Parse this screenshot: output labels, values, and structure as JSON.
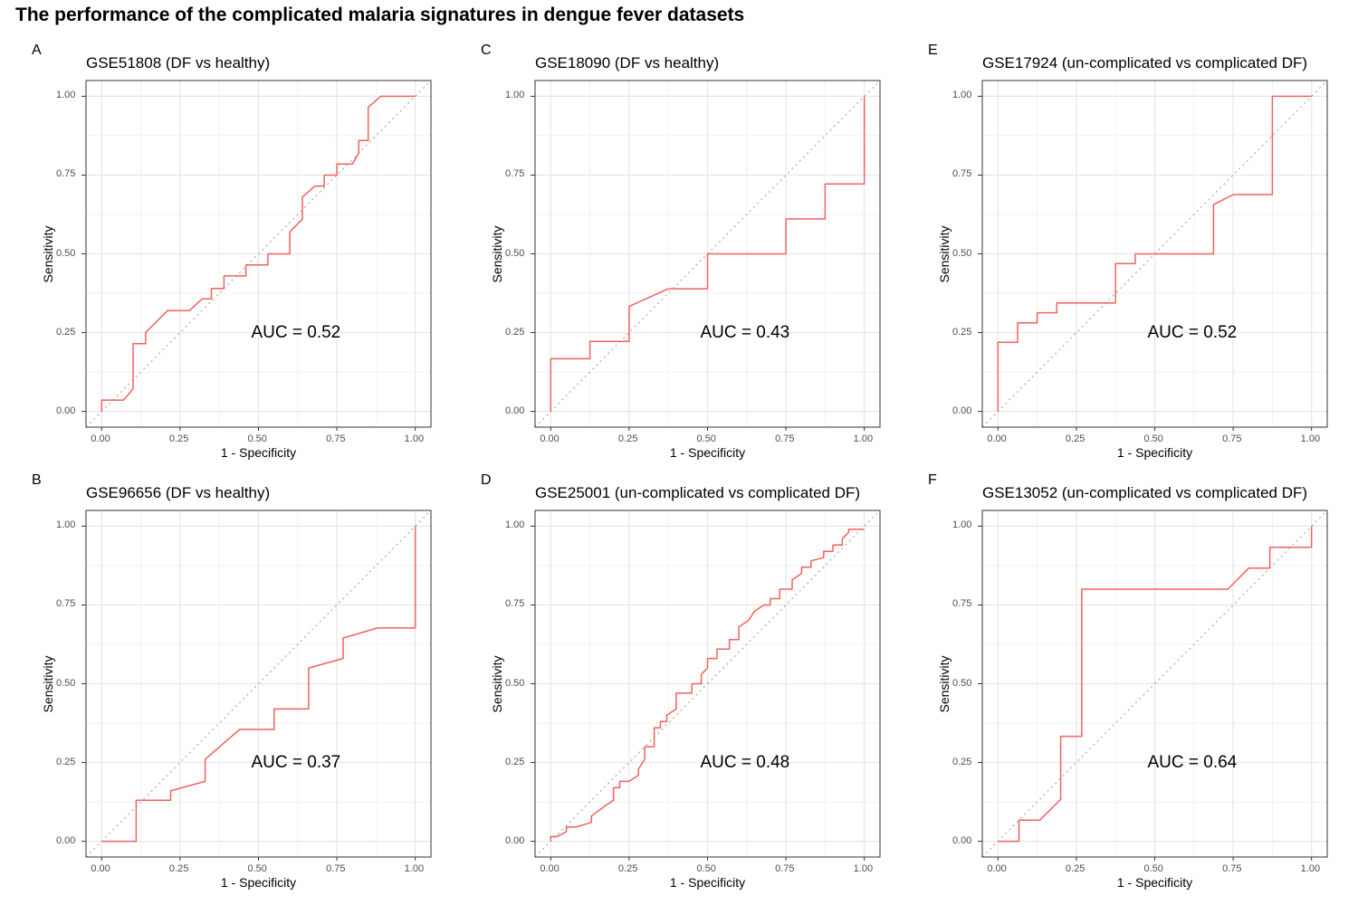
{
  "figure": {
    "title": "The performance of the complicated malaria signatures in dengue fever datasets"
  },
  "colors": {
    "roc_line": "#f0625d",
    "diagonal": "#a9a9a9",
    "grid_major": "#e6e6e6",
    "grid_minor": "#f2f2f2",
    "panel_border": "#333333"
  },
  "chart_data": [
    {
      "type": "line",
      "panel": "A",
      "title": "GSE51808 (DF vs healthy)",
      "xlabel": "1 - Specificity",
      "ylabel": "Sensitivity",
      "xlim": [
        0,
        1
      ],
      "ylim": [
        0,
        1
      ],
      "xticks": [
        "0.00",
        "0.25",
        "0.50",
        "0.75",
        "1.00"
      ],
      "yticks": [
        "0.00",
        "0.25",
        "0.50",
        "0.75",
        "1.00"
      ],
      "auc_label": "AUC = 0.52",
      "x": [
        0,
        0,
        0.07,
        0.1,
        0.1,
        0.14,
        0.14,
        0.21,
        0.28,
        0.32,
        0.35,
        0.35,
        0.39,
        0.39,
        0.46,
        0.46,
        0.53,
        0.53,
        0.6,
        0.6,
        0.64,
        0.64,
        0.68,
        0.71,
        0.71,
        0.75,
        0.75,
        0.8,
        0.82,
        0.82,
        0.85,
        0.85,
        0.89,
        0.89,
        1
      ],
      "y": [
        0,
        0.036,
        0.036,
        0.072,
        0.215,
        0.215,
        0.25,
        0.32,
        0.32,
        0.357,
        0.357,
        0.39,
        0.39,
        0.43,
        0.43,
        0.465,
        0.465,
        0.5,
        0.5,
        0.57,
        0.61,
        0.68,
        0.715,
        0.715,
        0.75,
        0.75,
        0.785,
        0.785,
        0.82,
        0.86,
        0.86,
        0.965,
        1,
        1,
        1
      ]
    },
    {
      "type": "line",
      "panel": "B",
      "title": "GSE96656 (DF vs healthy)",
      "xlabel": "1 - Specificity",
      "ylabel": "Sensitivity",
      "xlim": [
        0,
        1
      ],
      "ylim": [
        0,
        1
      ],
      "xticks": [
        "0.00",
        "0.25",
        "0.50",
        "0.75",
        "1.00"
      ],
      "yticks": [
        "0.00",
        "0.25",
        "0.50",
        "0.75",
        "1.00"
      ],
      "auc_label": "AUC = 0.37",
      "x": [
        0,
        0.11,
        0.11,
        0.22,
        0.22,
        0.33,
        0.33,
        0.44,
        0.55,
        0.55,
        0.66,
        0.66,
        0.77,
        0.77,
        0.88,
        1,
        1
      ],
      "y": [
        0,
        0,
        0.13,
        0.13,
        0.16,
        0.19,
        0.26,
        0.355,
        0.355,
        0.42,
        0.42,
        0.55,
        0.58,
        0.645,
        0.677,
        0.677,
        1
      ]
    },
    {
      "type": "line",
      "panel": "C",
      "title": "GSE18090 (DF vs healthy)",
      "xlabel": "1 - Specificity",
      "ylabel": "Sensitivity",
      "xlim": [
        0,
        1
      ],
      "ylim": [
        0,
        1
      ],
      "xticks": [
        "0.00",
        "0.25",
        "0.50",
        "0.75",
        "1.00"
      ],
      "yticks": [
        "0.00",
        "0.25",
        "0.50",
        "0.75",
        "1.00"
      ],
      "auc_label": "AUC = 0.43",
      "x": [
        0,
        0,
        0.125,
        0.125,
        0.25,
        0.25,
        0.375,
        0.5,
        0.5,
        0.75,
        0.75,
        0.875,
        0.875,
        1,
        1
      ],
      "y": [
        0,
        0.167,
        0.167,
        0.222,
        0.222,
        0.333,
        0.389,
        0.389,
        0.5,
        0.5,
        0.611,
        0.611,
        0.722,
        0.722,
        1
      ]
    },
    {
      "type": "line",
      "panel": "D",
      "title": "GSE25001 (un-complicated vs complicated DF)",
      "xlabel": "1 - Specificity",
      "ylabel": "Sensitivity",
      "xlim": [
        0,
        1
      ],
      "ylim": [
        0,
        1
      ],
      "xticks": [
        "0.00",
        "0.25",
        "0.50",
        "0.75",
        "1.00"
      ],
      "yticks": [
        "0.00",
        "0.25",
        "0.50",
        "0.75",
        "1.00"
      ],
      "auc_label": "AUC = 0.48",
      "x": [
        0,
        0,
        0.02,
        0.05,
        0.05,
        0.08,
        0.13,
        0.13,
        0.15,
        0.17,
        0.17,
        0.2,
        0.2,
        0.22,
        0.22,
        0.25,
        0.28,
        0.28,
        0.3,
        0.3,
        0.33,
        0.33,
        0.35,
        0.35,
        0.37,
        0.37,
        0.4,
        0.4,
        0.45,
        0.45,
        0.48,
        0.48,
        0.5,
        0.5,
        0.53,
        0.53,
        0.57,
        0.57,
        0.6,
        0.6,
        0.63,
        0.63,
        0.65,
        0.65,
        0.68,
        0.7,
        0.7,
        0.73,
        0.73,
        0.77,
        0.77,
        0.8,
        0.8,
        0.83,
        0.83,
        0.87,
        0.87,
        0.9,
        0.9,
        0.93,
        0.93,
        0.95,
        0.95,
        1
      ],
      "y": [
        0,
        0.015,
        0.015,
        0.03,
        0.045,
        0.045,
        0.06,
        0.08,
        0.095,
        0.11,
        0.11,
        0.13,
        0.17,
        0.17,
        0.19,
        0.19,
        0.21,
        0.23,
        0.26,
        0.3,
        0.3,
        0.36,
        0.36,
        0.38,
        0.38,
        0.4,
        0.42,
        0.47,
        0.47,
        0.5,
        0.5,
        0.53,
        0.55,
        0.58,
        0.58,
        0.61,
        0.61,
        0.64,
        0.64,
        0.68,
        0.7,
        0.7,
        0.73,
        0.73,
        0.75,
        0.75,
        0.77,
        0.77,
        0.8,
        0.8,
        0.83,
        0.85,
        0.87,
        0.87,
        0.89,
        0.9,
        0.92,
        0.92,
        0.94,
        0.94,
        0.96,
        0.98,
        0.99,
        0.99
      ]
    },
    {
      "type": "line",
      "panel": "E",
      "title": "GSE17924 (un-complicated vs complicated DF)",
      "xlabel": "1 - Specificity",
      "ylabel": "Sensitivity",
      "xlim": [
        0,
        1
      ],
      "ylim": [
        0,
        1
      ],
      "xticks": [
        "0.00",
        "0.25",
        "0.50",
        "0.75",
        "1.00"
      ],
      "yticks": [
        "0.00",
        "0.25",
        "0.50",
        "0.75",
        "1.00"
      ],
      "auc_label": "AUC = 0.52",
      "x": [
        0,
        0,
        0.0625,
        0.0625,
        0.125,
        0.125,
        0.1875,
        0.1875,
        0.375,
        0.375,
        0.4375,
        0.4375,
        0.6875,
        0.6875,
        0.75,
        0.875,
        0.875,
        1
      ],
      "y": [
        0,
        0.219,
        0.219,
        0.281,
        0.281,
        0.313,
        0.313,
        0.344,
        0.344,
        0.469,
        0.469,
        0.5,
        0.5,
        0.656,
        0.688,
        0.688,
        1,
        1
      ]
    },
    {
      "type": "line",
      "panel": "F",
      "title": "GSE13052 (un-complicated vs complicated DF)",
      "xlabel": "1 - Specificity",
      "ylabel": "Sensitivity",
      "xlim": [
        0,
        1
      ],
      "ylim": [
        0,
        1
      ],
      "xticks": [
        "0.00",
        "0.25",
        "0.50",
        "0.75",
        "1.00"
      ],
      "yticks": [
        "0.00",
        "0.25",
        "0.50",
        "0.75",
        "1.00"
      ],
      "auc_label": "AUC = 0.64",
      "x": [
        0,
        0.067,
        0.067,
        0.133,
        0.2,
        0.2,
        0.267,
        0.267,
        0.733,
        0.8,
        0.867,
        0.867,
        1,
        1
      ],
      "y": [
        0,
        0,
        0.067,
        0.067,
        0.133,
        0.333,
        0.333,
        0.8,
        0.8,
        0.867,
        0.867,
        0.933,
        0.933,
        1
      ]
    }
  ]
}
